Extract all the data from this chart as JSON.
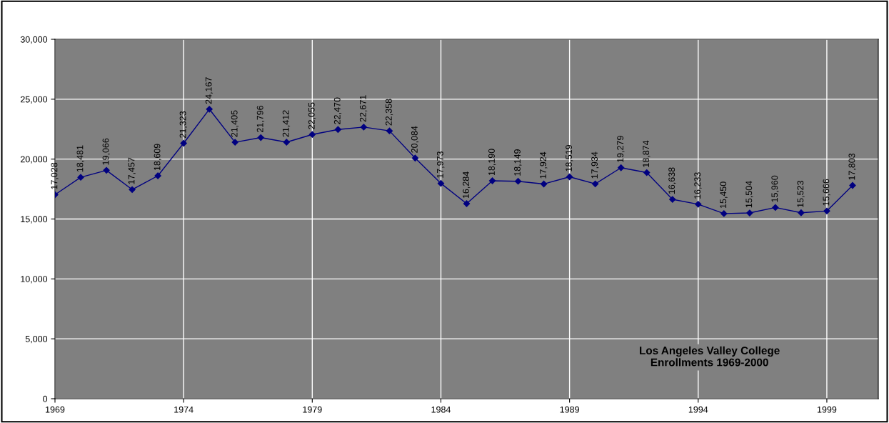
{
  "chart_data": {
    "type": "line",
    "title": "Los Angeles Valley College\nEnrollments 1969-2000",
    "x": [
      1969,
      1970,
      1971,
      1972,
      1973,
      1974,
      1975,
      1976,
      1977,
      1978,
      1979,
      1980,
      1981,
      1982,
      1983,
      1984,
      1985,
      1986,
      1987,
      1988,
      1989,
      1990,
      1991,
      1992,
      1993,
      1994,
      1995,
      1996,
      1997,
      1998,
      1999,
      2000
    ],
    "series": [
      {
        "color": "#000080",
        "values": [
          17028,
          18481,
          19066,
          17457,
          18609,
          21323,
          24167,
          21405,
          21796,
          21412,
          22055,
          22470,
          22671,
          22358,
          20084,
          17973,
          16284,
          18190,
          18149,
          17924,
          18519,
          17934,
          19279,
          18874,
          16638,
          16233,
          15450,
          15504,
          15960,
          15523,
          15666,
          17803
        ],
        "value_labels": [
          "17,028",
          "18,481",
          "19,066",
          "17,457",
          "18,609",
          "21,323",
          "24,167",
          "21,405",
          "21,796",
          "21,412",
          "22,055",
          "22,470",
          "22,671",
          "22,358",
          "20,084",
          "17,973",
          "16,284",
          "18,190",
          "18,149",
          "17,924",
          "18,519",
          "17,934",
          "19,279",
          "18,874",
          "16,638",
          "16,233",
          "15,450",
          "15,504",
          "15,960",
          "15,523",
          "15,666",
          "17,803"
        ]
      }
    ],
    "xlim": [
      1969,
      2001
    ],
    "xticks": [
      1969,
      1974,
      1979,
      1984,
      1989,
      1994,
      1999
    ],
    "ylim": [
      0,
      30000
    ],
    "yticks": [
      {
        "value": 0,
        "label": "0"
      },
      {
        "value": 5000,
        "label": "5,000"
      },
      {
        "value": 10000,
        "label": "10,000"
      },
      {
        "value": 15000,
        "label": "15,000"
      },
      {
        "value": 20000,
        "label": "20,000"
      },
      {
        "value": 25000,
        "label": "25,000"
      },
      {
        "value": 30000,
        "label": "30,000"
      }
    ],
    "grid": true,
    "marker": "diamond",
    "line_style": "solid"
  }
}
